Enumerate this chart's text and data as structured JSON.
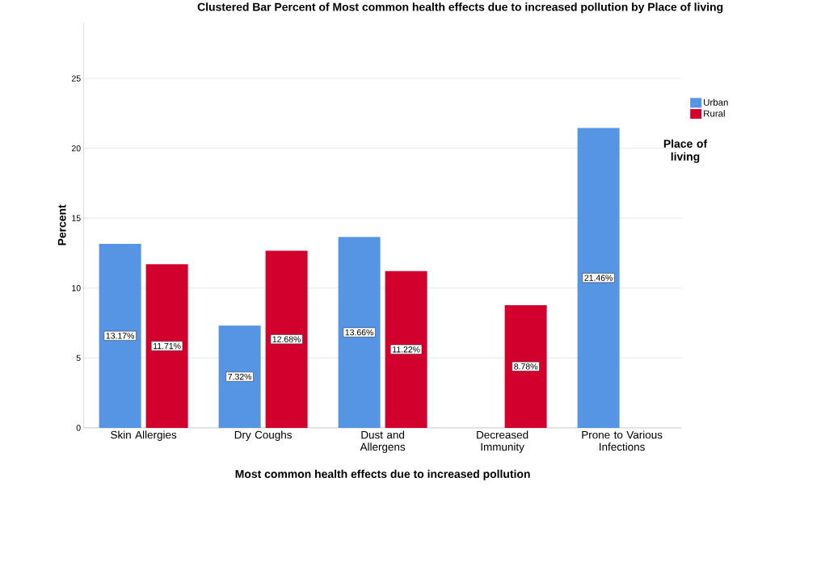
{
  "chart_data": {
    "type": "bar",
    "title": "Clustered Bar Percent of Most common health effects due to increased pollution by Place of living",
    "xlabel": "Most common health effects due to increased pollution",
    "ylabel": "Percent",
    "legend_title": "Place of living",
    "categories": [
      "Skin Allergies",
      "Dry Coughs",
      "Dust and Allergens",
      "Decreased Immunity",
      "Prone to Various Infections"
    ],
    "series": [
      {
        "name": "Urban",
        "color": "#5595e4",
        "values": [
          13.17,
          7.32,
          13.66,
          null,
          21.46
        ],
        "value_labels": [
          "13.17%",
          "7.32%",
          "13.66%",
          null,
          "21.46%"
        ]
      },
      {
        "name": "Rural",
        "color": "#d2002d",
        "values": [
          11.71,
          12.68,
          11.22,
          8.78,
          null
        ],
        "value_labels": [
          "11.71%",
          "12.68%",
          "11.22%",
          "8.78%",
          null
        ]
      }
    ],
    "ylim": [
      0,
      29
    ],
    "yticks": [
      0,
      5,
      10,
      15,
      20,
      25
    ],
    "grid": "y",
    "legend": "top right"
  }
}
